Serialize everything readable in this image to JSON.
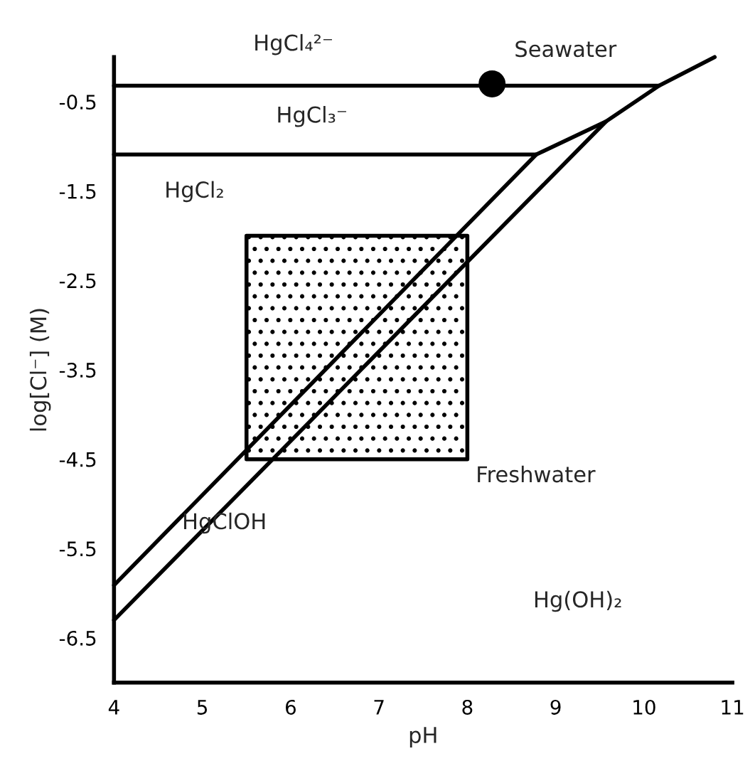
{
  "chart_data": {
    "type": "line",
    "xlabel": "pH",
    "ylabel": "log[Cl⁻] (M)",
    "xlim": [
      4,
      11
    ],
    "ylim": [
      -7,
      0
    ],
    "xticks": [
      4,
      5,
      6,
      7,
      8,
      9,
      10,
      11
    ],
    "yticks": [
      -0.5,
      -1.5,
      -2.5,
      -3.5,
      -4.5,
      -5.5,
      -6.5
    ],
    "grid": false,
    "series": [
      {
        "color": "#000000",
        "x": [
          4,
          10.17,
          10.8
        ],
        "values": [
          -0.32,
          -0.32,
          0.0
        ]
      },
      {
        "color": "#000000",
        "x": [
          4,
          8.78,
          9.57
        ],
        "values": [
          -1.09,
          -1.09,
          -0.72
        ]
      },
      {
        "color": "#000000",
        "x": [
          4,
          8.78
        ],
        "values": [
          -5.91,
          -1.09
        ]
      },
      {
        "color": "#000000",
        "x": [
          4,
          9.57,
          10.17
        ],
        "values": [
          -6.3,
          -0.72,
          -0.32
        ]
      },
      {
        "type": "area",
        "color": "#000000",
        "x": [
          5.5,
          8.0,
          8.0,
          5.5,
          5.5
        ],
        "values": [
          -2.0,
          -2.0,
          -4.5,
          -4.5,
          -2.0
        ]
      },
      {
        "type": "scatter",
        "color": "#000000",
        "marker": "circle",
        "x": [
          8.28
        ],
        "values": [
          -0.3
        ]
      }
    ],
    "annotations": [
      "HgCl₄²⁻",
      "Seawater",
      "HgCl₃⁻",
      "HgCl₂",
      "Freshwater",
      "HgClOH",
      "Hg(OH)₂"
    ]
  }
}
